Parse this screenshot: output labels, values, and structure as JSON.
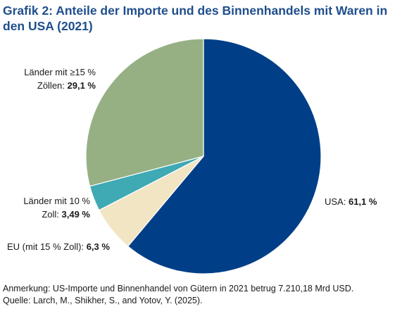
{
  "title": "Grafik 2:  Anteile der Importe und des Binnenhandels mit Waren in den USA (2021)",
  "chart_data": {
    "type": "pie",
    "title": "Grafik 2:  Anteile der Importe und des Binnenhandels mit Waren in den USA (2021)",
    "slices": [
      {
        "name_line1": "USA: ",
        "name_line2": "",
        "value_text": "61,1 %",
        "value": 61.1,
        "color": "#003f87"
      },
      {
        "name_line1": "EU (mit 15 % Zoll): ",
        "name_line2": "",
        "value_text": "6,3 %",
        "value": 6.3,
        "color": "#f2e5c3"
      },
      {
        "name_line1": "Länder mit 10 %",
        "name_line2": "Zoll: ",
        "value_text": "3,49 %",
        "value": 3.49,
        "color": "#3fa9b4"
      },
      {
        "name_line1": "Länder mit ≥15 %",
        "name_line2": "Zöllen: ",
        "value_text": "29,1 %",
        "value": 29.1,
        "color": "#96b084"
      }
    ]
  },
  "footer": {
    "note": "Anmerkung: US-Importe und Binnenhandel von Gütern in 2021 betrug 7.210,18 Mrd USD.",
    "source": "Quelle: Larch, M., Shikher, S., and Yotov, Y. (2025)."
  }
}
